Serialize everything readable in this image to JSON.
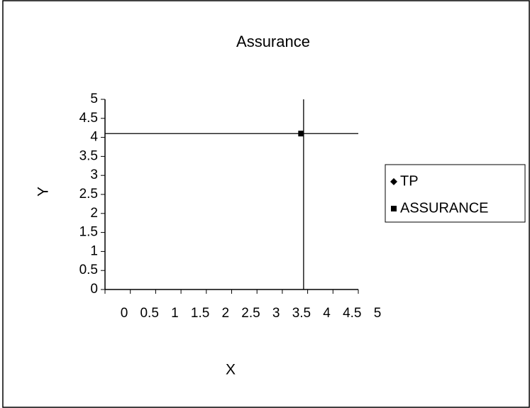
{
  "chart_data": {
    "type": "scatter",
    "title": "Assurance",
    "xlabel": "X",
    "ylabel": "Y",
    "series": [
      {
        "name": "TP",
        "color": "#000000",
        "marker": "diamond",
        "x": [
          0,
          5,
          null,
          3.92,
          3.92
        ],
        "y": [
          4.1,
          4.1,
          null,
          0,
          5
        ]
      },
      {
        "name": "ASSURANCE",
        "color": "#000000",
        "marker": "square",
        "x": [
          3.87
        ],
        "y": [
          4.1
        ]
      }
    ],
    "xlim": [
      0,
      5
    ],
    "xticks": [
      0,
      0.5,
      1,
      1.5,
      2,
      2.5,
      3,
      3.5,
      4,
      4.5,
      5
    ],
    "ylim": [
      0,
      5
    ],
    "yticks": [
      0,
      0.5,
      1,
      1.5,
      2,
      2.5,
      3,
      3.5,
      4,
      4.5,
      5
    ],
    "legend": "right"
  }
}
